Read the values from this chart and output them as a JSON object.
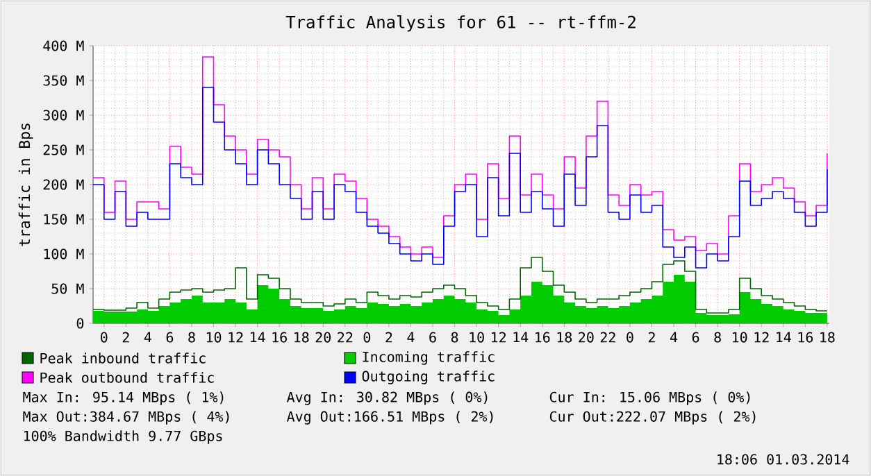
{
  "chart_data": {
    "type": "step",
    "title": "Traffic Analysis for 61 -- rt-ffm-2",
    "ylabel": "traffic in Bps",
    "x": [
      "2014-02-26T23:00",
      "2014-02-27T00:00",
      "2014-02-27T01:00",
      "2014-02-27T02:00",
      "2014-02-27T03:00",
      "2014-02-27T04:00",
      "2014-02-27T05:00",
      "2014-02-27T06:00",
      "2014-02-27T07:00",
      "2014-02-27T08:00",
      "2014-02-27T09:00",
      "2014-02-27T10:00",
      "2014-02-27T11:00",
      "2014-02-27T12:00",
      "2014-02-27T13:00",
      "2014-02-27T14:00",
      "2014-02-27T15:00",
      "2014-02-27T16:00",
      "2014-02-27T17:00",
      "2014-02-27T18:00",
      "2014-02-27T19:00",
      "2014-02-27T20:00",
      "2014-02-27T21:00",
      "2014-02-27T22:00",
      "2014-02-27T23:00",
      "2014-02-28T00:00",
      "2014-02-28T01:00",
      "2014-02-28T02:00",
      "2014-02-28T03:00",
      "2014-02-28T04:00",
      "2014-02-28T05:00",
      "2014-02-28T06:00",
      "2014-02-28T07:00",
      "2014-02-28T08:00",
      "2014-02-28T09:00",
      "2014-02-28T10:00",
      "2014-02-28T11:00",
      "2014-02-28T12:00",
      "2014-02-28T13:00",
      "2014-02-28T14:00",
      "2014-02-28T15:00",
      "2014-02-28T16:00",
      "2014-02-28T17:00",
      "2014-02-28T18:00",
      "2014-02-28T19:00",
      "2014-02-28T20:00",
      "2014-02-28T21:00",
      "2014-02-28T22:00",
      "2014-02-28T23:00",
      "2014-03-01T00:00",
      "2014-03-01T01:00",
      "2014-03-01T02:00",
      "2014-03-01T03:00",
      "2014-03-01T04:00",
      "2014-03-01T05:00",
      "2014-03-01T06:00",
      "2014-03-01T07:00",
      "2014-03-01T08:00",
      "2014-03-01T09:00",
      "2014-03-01T10:00",
      "2014-03-01T11:00",
      "2014-03-01T12:00",
      "2014-03-01T13:00",
      "2014-03-01T14:00",
      "2014-03-01T15:00",
      "2014-03-01T16:00",
      "2014-03-01T17:00",
      "2014-03-01T18:00"
    ],
    "series": [
      {
        "name": "Peak inbound traffic",
        "color": "#006600",
        "values": [
          20,
          19,
          19,
          22,
          30,
          22,
          35,
          45,
          48,
          50,
          45,
          48,
          50,
          80,
          35,
          70,
          65,
          50,
          35,
          30,
          30,
          25,
          28,
          35,
          30,
          45,
          40,
          35,
          40,
          38,
          45,
          50,
          55,
          50,
          40,
          30,
          25,
          20,
          35,
          80,
          95,
          75,
          55,
          45,
          35,
          30,
          35,
          35,
          40,
          45,
          50,
          60,
          85,
          90,
          75,
          20,
          15,
          15,
          20,
          65,
          50,
          40,
          35,
          30,
          25,
          20,
          18,
          18
        ]
      },
      {
        "name": "Incoming traffic",
        "color": "#00cc00",
        "type": "area",
        "values": [
          18,
          17,
          17,
          17,
          20,
          18,
          25,
          30,
          35,
          40,
          30,
          30,
          35,
          30,
          20,
          55,
          50,
          35,
          25,
          22,
          22,
          18,
          20,
          25,
          22,
          30,
          28,
          25,
          28,
          25,
          30,
          35,
          40,
          35,
          30,
          20,
          18,
          12,
          20,
          40,
          60,
          55,
          40,
          30,
          25,
          22,
          25,
          22,
          25,
          30,
          35,
          40,
          60,
          70,
          60,
          15,
          12,
          12,
          13,
          45,
          35,
          28,
          25,
          20,
          18,
          15,
          15,
          15
        ]
      },
      {
        "name": "Peak outbound traffic",
        "color": "#ff00ff",
        "values": [
          210,
          160,
          205,
          150,
          175,
          175,
          165,
          255,
          225,
          215,
          384,
          315,
          270,
          250,
          215,
          265,
          250,
          240,
          200,
          165,
          210,
          165,
          215,
          205,
          180,
          150,
          140,
          125,
          110,
          100,
          110,
          95,
          155,
          200,
          215,
          150,
          230,
          180,
          270,
          185,
          215,
          185,
          165,
          240,
          195,
          270,
          320,
          185,
          170,
          200,
          185,
          190,
          135,
          120,
          125,
          105,
          115,
          100,
          155,
          230,
          190,
          200,
          210,
          195,
          175,
          155,
          170,
          245
        ]
      },
      {
        "name": "Outgoing traffic",
        "color": "#0000ff",
        "values": [
          200,
          150,
          190,
          140,
          160,
          150,
          150,
          230,
          210,
          200,
          340,
          290,
          250,
          230,
          200,
          250,
          230,
          200,
          180,
          150,
          190,
          150,
          200,
          190,
          160,
          140,
          130,
          115,
          100,
          90,
          100,
          85,
          140,
          190,
          200,
          125,
          210,
          155,
          245,
          160,
          190,
          165,
          140,
          215,
          170,
          240,
          285,
          160,
          150,
          185,
          160,
          170,
          110,
          95,
          110,
          80,
          100,
          90,
          125,
          205,
          170,
          180,
          190,
          180,
          160,
          140,
          160,
          222
        ]
      }
    ],
    "xlim": [
      "2014-02-26T23:00",
      "2014-03-01T18:12"
    ],
    "ylim": [
      0,
      400
    ],
    "xticks": [
      {
        "value": "2014-02-27T00:00",
        "label": "0"
      },
      {
        "value": "2014-02-27T02:00",
        "label": "2"
      },
      {
        "value": "2014-02-27T04:00",
        "label": "4"
      },
      {
        "value": "2014-02-27T06:00",
        "label": "6"
      },
      {
        "value": "2014-02-27T08:00",
        "label": "8"
      },
      {
        "value": "2014-02-27T10:00",
        "label": "10"
      },
      {
        "value": "2014-02-27T12:00",
        "label": "12"
      },
      {
        "value": "2014-02-27T14:00",
        "label": "14"
      },
      {
        "value": "2014-02-27T16:00",
        "label": "16"
      },
      {
        "value": "2014-02-27T18:00",
        "label": "18"
      },
      {
        "value": "2014-02-27T20:00",
        "label": "20"
      },
      {
        "value": "2014-02-27T22:00",
        "label": "22"
      },
      {
        "value": "2014-02-28T00:00",
        "label": "0"
      },
      {
        "value": "2014-02-28T02:00",
        "label": "2"
      },
      {
        "value": "2014-02-28T04:00",
        "label": "4"
      },
      {
        "value": "2014-02-28T06:00",
        "label": "6"
      },
      {
        "value": "2014-02-28T08:00",
        "label": "8"
      },
      {
        "value": "2014-02-28T10:00",
        "label": "10"
      },
      {
        "value": "2014-02-28T12:00",
        "label": "12"
      },
      {
        "value": "2014-02-28T14:00",
        "label": "14"
      },
      {
        "value": "2014-02-28T16:00",
        "label": "16"
      },
      {
        "value": "2014-02-28T18:00",
        "label": "18"
      },
      {
        "value": "2014-02-28T20:00",
        "label": "20"
      },
      {
        "value": "2014-02-28T22:00",
        "label": "22"
      },
      {
        "value": "2014-03-01T00:00",
        "label": "0"
      },
      {
        "value": "2014-03-01T02:00",
        "label": "2"
      },
      {
        "value": "2014-03-01T04:00",
        "label": "4"
      },
      {
        "value": "2014-03-01T06:00",
        "label": "6"
      },
      {
        "value": "2014-03-01T08:00",
        "label": "8"
      },
      {
        "value": "2014-03-01T10:00",
        "label": "10"
      },
      {
        "value": "2014-03-01T12:00",
        "label": "12"
      },
      {
        "value": "2014-03-01T14:00",
        "label": "14"
      },
      {
        "value": "2014-03-01T16:00",
        "label": "16"
      },
      {
        "value": "2014-03-01T18:00",
        "label": "18"
      }
    ],
    "yticks": [
      0,
      {
        "value": 50,
        "label": "50 M"
      },
      {
        "value": 100,
        "label": "100 M"
      },
      {
        "value": 150,
        "label": "150 M"
      },
      {
        "value": 200,
        "label": "200 M"
      },
      {
        "value": 250,
        "label": "250 M"
      },
      {
        "value": 300,
        "label": "300 M"
      },
      {
        "value": 350,
        "label": "350 M"
      },
      {
        "value": 400,
        "label": "400 M"
      }
    ],
    "grid": true,
    "legend": "bottom",
    "annotations": [
      "Max In: 95.14 MBps ( 1%)",
      "Avg In: 30.82 MBps ( 0%)",
      "Cur In: 15.06 MBps ( 0%)",
      "Max Out:384.67 MBps ( 4%)",
      "Avg Out:166.51 MBps ( 2%)",
      "Cur Out:222.07 MBps ( 2%)",
      "100% Bandwidth 9.77 GBps",
      "18:06 01.03.2014"
    ]
  }
}
